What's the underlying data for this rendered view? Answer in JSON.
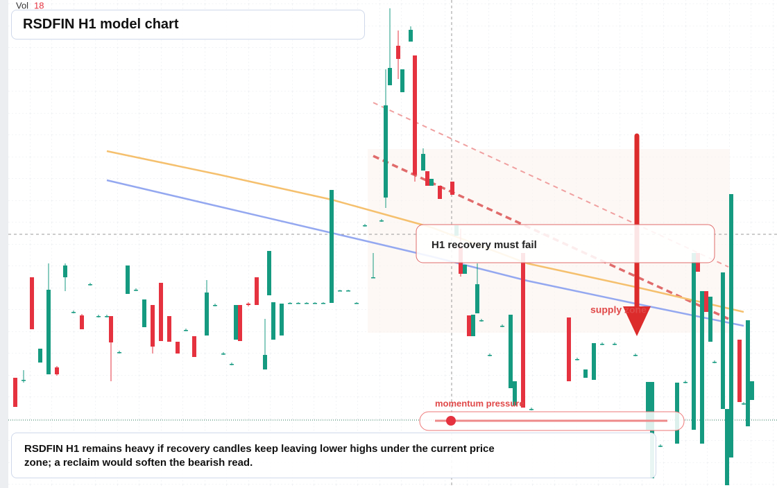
{
  "chart_data": {
    "type": "candlestick",
    "title": "RSDFIN H1 model chart",
    "volume_label": "Vol",
    "volume_value": "18",
    "x": [
      4,
      6,
      8,
      10,
      12,
      14,
      16,
      18,
      20,
      22,
      24,
      26,
      27,
      29,
      31,
      33,
      35,
      37,
      39,
      41,
      43,
      45,
      47,
      50,
      52,
      54,
      56,
      57,
      58,
      60,
      62,
      64,
      65,
      66,
      68,
      70,
      72,
      74,
      76,
      78,
      80,
      82,
      84,
      86,
      88,
      90,
      92,
      93,
      94,
      96,
      97,
      99,
      100,
      102,
      103,
      104,
      106,
      109,
      110,
      111,
      112,
      113,
      114,
      115,
      116,
      118,
      121,
      123,
      124,
      126,
      128,
      137,
      139,
      141,
      143,
      145,
      148,
      153,
      156,
      157,
      159,
      163,
      165,
      167,
      168,
      169,
      170,
      171,
      172,
      174,
      175,
      176,
      178,
      179,
      180,
      181
    ],
    "open": [
      159,
      156,
      304,
      181,
      164,
      174,
      304,
      254,
      249,
      294,
      248,
      248,
      248,
      196,
      280,
      286,
      232,
      264,
      296,
      248,
      211,
      228,
      219,
      220,
      264,
      194,
      179,
      214,
      264,
      266,
      304,
      171,
      278,
      214,
      220,
      267,
      267,
      267,
      267,
      267,
      267,
      285,
      285,
      267,
      379,
      304,
      386,
      419,
      581,
      638,
      571,
      644,
      624,
      458,
      457,
      436,
      436,
      442,
      364,
      347,
      309,
      249,
      219,
      252,
      242,
      192,
      234,
      144,
      119,
      339,
      114,
      246,
      186,
      159,
      156,
      208,
      208,
      192,
      84,
      14,
      61,
      64,
      153,
      84,
      339,
      64,
      284,
      211,
      182,
      114,
      4,
      44,
      214,
      122,
      89,
      127
    ],
    "high": [
      159,
      170,
      304,
      201,
      324,
      176,
      324,
      256,
      251,
      296,
      250,
      250,
      248,
      198,
      321,
      288,
      272,
      264,
      296,
      248,
      211,
      230,
      219,
      300,
      266,
      196,
      181,
      264,
      264,
      268,
      304,
      244,
      342,
      268,
      266,
      268,
      268,
      268,
      268,
      268,
      430,
      286,
      286,
      268,
      381,
      339,
      388,
      604,
      692,
      660,
      604,
      666,
      624,
      490,
      457,
      446,
      436,
      442,
      379,
      374,
      322,
      249,
      250,
      324,
      244,
      194,
      236,
      250,
      154,
      339,
      116,
      246,
      188,
      171,
      209,
      210,
      210,
      194,
      153,
      153,
      63,
      152,
      155,
      339,
      339,
      284,
      284,
      276,
      184,
      311,
      114,
      424,
      214,
      124,
      242,
      154
    ],
    "low": [
      117,
      152,
      229,
      181,
      164,
      162,
      284,
      252,
      229,
      292,
      246,
      246,
      154,
      194,
      280,
      284,
      232,
      194,
      212,
      211,
      194,
      226,
      189,
      220,
      262,
      192,
      177,
      214,
      212,
      262,
      264,
      171,
      278,
      214,
      220,
      266,
      266,
      266,
      266,
      266,
      267,
      284,
      284,
      266,
      377,
      304,
      384,
      404,
      581,
      590,
      571,
      644,
      442,
      458,
      436,
      436,
      417,
      423,
      364,
      305,
      309,
      219,
      219,
      252,
      240,
      190,
      232,
      144,
      119,
      116,
      112,
      154,
      184,
      159,
      156,
      206,
      206,
      190,
      84,
      14,
      59,
      64,
      151,
      84,
      312,
      64,
      254,
      211,
      180,
      114,
      4,
      44,
      124,
      120,
      89,
      127
    ],
    "close": [
      117,
      156,
      229,
      201,
      286,
      164,
      321,
      254,
      229,
      294,
      248,
      248,
      210,
      196,
      321,
      286,
      272,
      204,
      212,
      211,
      194,
      228,
      189,
      282,
      264,
      194,
      179,
      264,
      212,
      264,
      264,
      192,
      342,
      268,
      266,
      267,
      267,
      267,
      267,
      267,
      430,
      285,
      285,
      267,
      379,
      304,
      386,
      552,
      606,
      619,
      604,
      661,
      452,
      482,
      436,
      446,
      417,
      423,
      379,
      309,
      322,
      219,
      250,
      294,
      242,
      192,
      234,
      250,
      154,
      116,
      114,
      154,
      186,
      171,
      209,
      208,
      208,
      192,
      153,
      153,
      61,
      152,
      153,
      339,
      312,
      284,
      254,
      276,
      182,
      311,
      114,
      424,
      124,
      122,
      242,
      154
    ],
    "up_color": "#159a80",
    "down_color": "#e5323f",
    "xlim": [
      2,
      187
    ],
    "ylim": [
      0,
      704
    ],
    "overlays": [
      {
        "color": "#f5c06e",
        "x": [
          26,
          53,
          80,
          104,
          127,
          153,
          179
        ],
        "values": [
          486,
          452,
          416,
          376,
          324,
          290,
          254
        ]
      },
      {
        "color": "#94a8f0",
        "x": [
          26,
          53,
          80,
          104,
          127,
          153,
          179
        ],
        "values": [
          444,
          406,
          368,
          334,
          299,
          266,
          234
        ]
      }
    ],
    "annotations": {
      "callout": "H1 recovery must fail",
      "zone": "supply zone",
      "meter": "momentum pressure",
      "note": "RSDFIN H1 remains heavy if recovery candles keep leaving lower highs under the current price zone; a reclaim would soften the bearish read."
    }
  }
}
